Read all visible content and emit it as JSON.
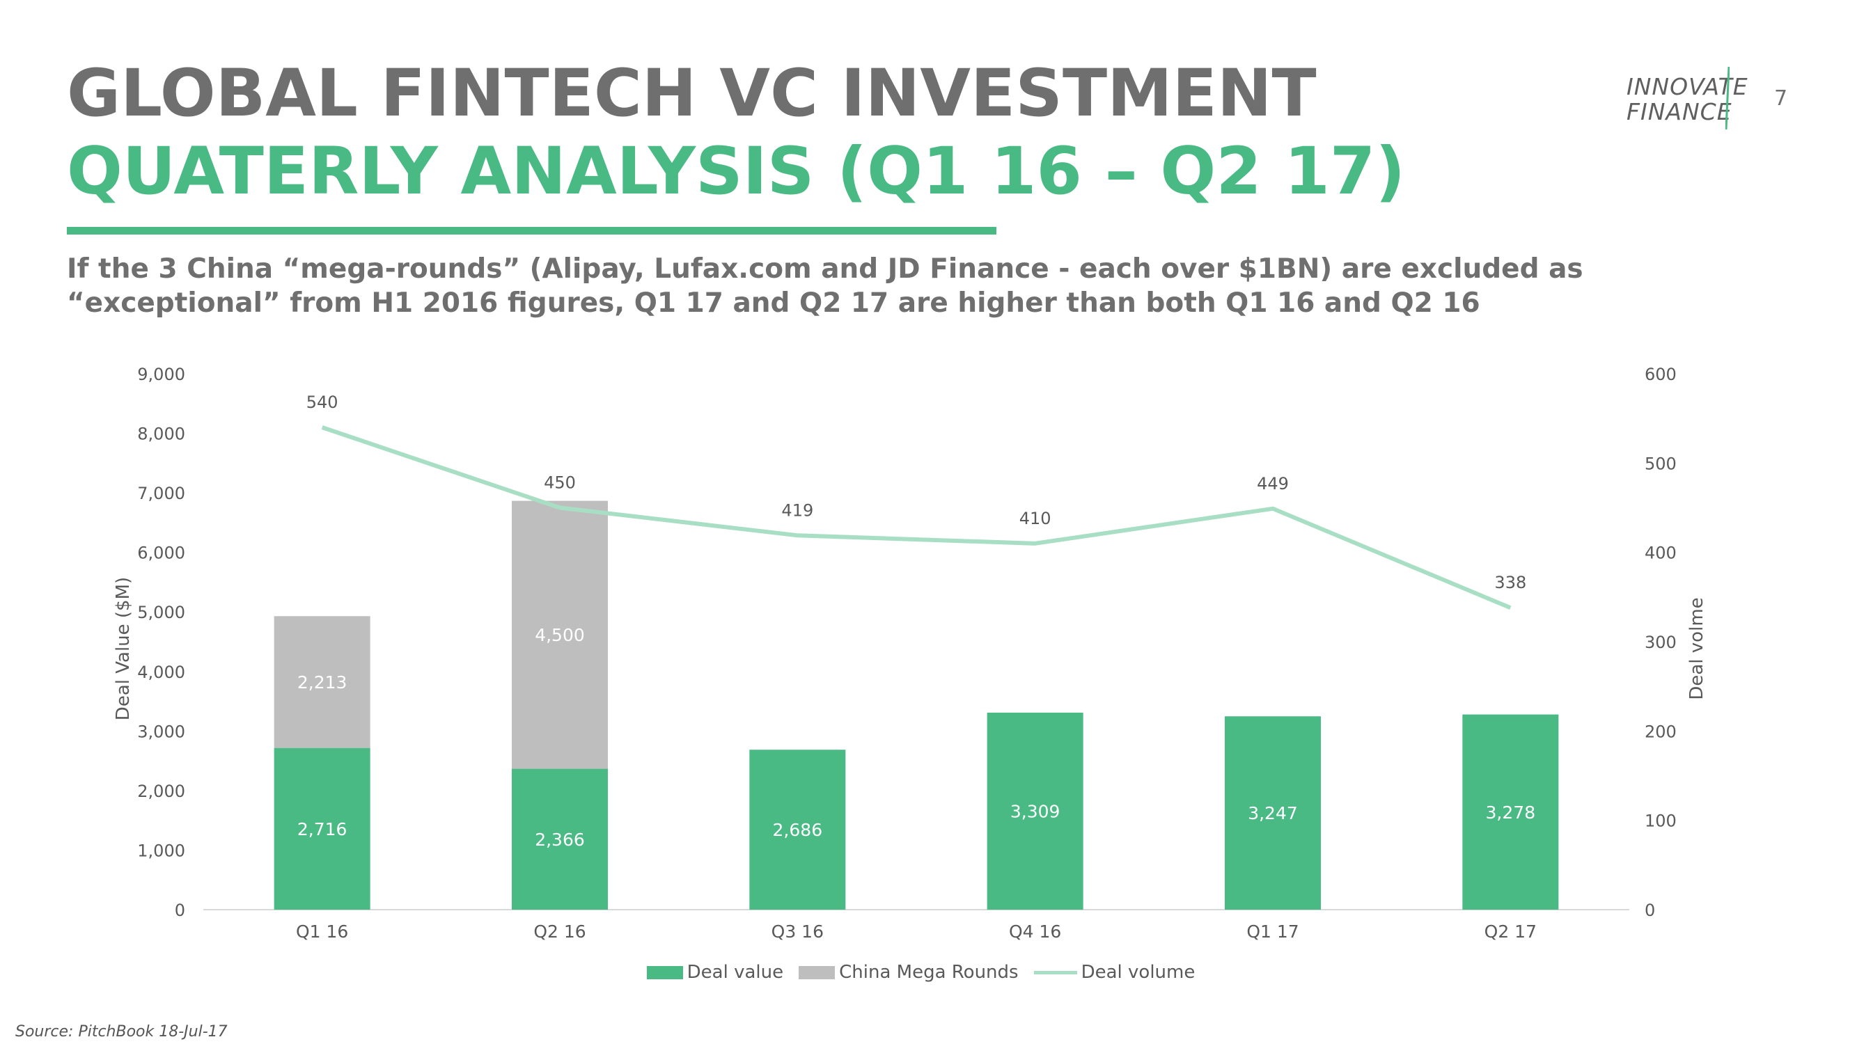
{
  "header": {
    "title_line1": "GLOBAL FINTECH VC INVESTMENT",
    "title_line2": "QUATERLY ANALYSIS (Q1 16 – Q2 17)",
    "subtitle": "If the 3 China “mega-rounds” (Alipay, Lufax.com and JD Finance - each over $1BN) are excluded as “exceptional” from H1 2016 figures, Q1 17 and Q2 17 are higher than both Q1 16 and Q2 16",
    "page_number": "7"
  },
  "logo": {
    "line1": "INNOVATE",
    "line2": "FINANCE",
    "icon": "slash-logo-icon"
  },
  "source": "Source: PitchBook 18-Jul-17",
  "colors": {
    "deal_value": "#4aba84",
    "china_mega": "#bebebe",
    "deal_volume": "#a8dfc4",
    "title_gray": "#6f6f6f",
    "accent_green": "#4aba84"
  },
  "chart_data": {
    "type": "bar",
    "stacked": true,
    "categories": [
      "Q1 16",
      "Q2 16",
      "Q3 16",
      "Q4 16",
      "Q1 17",
      "Q2 17"
    ],
    "series": [
      {
        "name": "Deal value",
        "axis": "left",
        "type": "bar",
        "values": [
          2716,
          2366,
          2686,
          3309,
          3247,
          3278
        ],
        "labels": [
          "2,716",
          "2,366",
          "2,686",
          "3,309",
          "3,247",
          "3,278"
        ]
      },
      {
        "name": "China Mega Rounds",
        "axis": "left",
        "type": "bar",
        "values": [
          2213,
          4500,
          null,
          null,
          null,
          null
        ],
        "labels": [
          "2,213",
          "4,500",
          "",
          "",
          "",
          ""
        ]
      },
      {
        "name": "Deal volume",
        "axis": "right",
        "type": "line",
        "values": [
          540,
          450,
          419,
          410,
          449,
          338
        ],
        "labels": [
          "540",
          "450",
          "419",
          "410",
          "449",
          "338"
        ]
      }
    ],
    "ylabel": "Deal Value ($M)",
    "y2label": "Deal volme",
    "ylim": [
      0,
      9000
    ],
    "y2lim": [
      0,
      600
    ],
    "yticks": [
      "0",
      "1,000",
      "2,000",
      "3,000",
      "4,000",
      "5,000",
      "6,000",
      "7,000",
      "8,000",
      "9,000"
    ],
    "y2ticks": [
      "0",
      "100",
      "200",
      "300",
      "400",
      "500",
      "600"
    ],
    "grid": false,
    "legend_position": "bottom"
  }
}
